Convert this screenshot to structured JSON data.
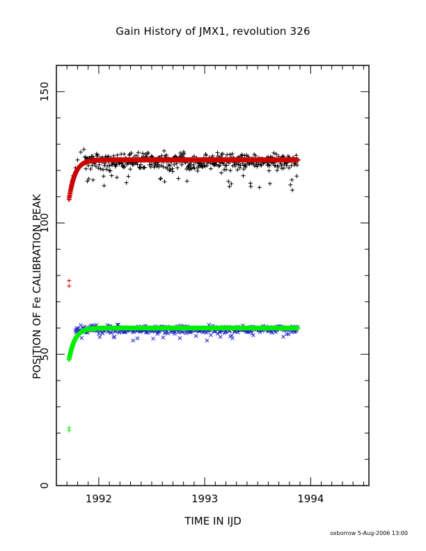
{
  "chart_data": {
    "type": "scatter",
    "title": "Gain History of JMX1, revolution 326",
    "xlabel": "TIME IN IJD",
    "ylabel": "POSITION OF Fe CALIBRATION PEAK",
    "xlim": [
      1991.6,
      1994.55
    ],
    "ylim": [
      0,
      160
    ],
    "xticks": [
      1992,
      1993,
      1994
    ],
    "yticks": [
      0,
      50,
      100,
      150
    ],
    "grid": false,
    "legend": "none",
    "x_start": 1991.72,
    "x_end": 1993.88,
    "series": [
      {
        "marker": "plus",
        "color": "#000000",
        "role": "high peak measurements",
        "level": 123.5,
        "spread": 3.5,
        "early": [
          [
            1991.72,
            110
          ],
          [
            1991.73,
            112
          ],
          [
            1991.74,
            114
          ],
          [
            1991.75,
            116
          ],
          [
            1991.76,
            118
          ],
          [
            1991.78,
            121
          ],
          [
            1991.8,
            124
          ],
          [
            1991.83,
            127
          ],
          [
            1991.86,
            128
          ]
        ]
      },
      {
        "marker": "plus",
        "color": "#cc0000",
        "role": "high peak fit",
        "level": 124,
        "rise_from": 109,
        "rise_rate": 18,
        "outliers": [
          [
            1991.72,
            78
          ],
          [
            1991.72,
            76
          ]
        ]
      },
      {
        "marker": "x",
        "color": "#2222cc",
        "role": "low peak measurements",
        "level": 59.5,
        "spread": 1.8
      },
      {
        "marker": "plus",
        "color": "#00ee00",
        "role": "low peak fit",
        "level": 60,
        "rise_from": 48,
        "rise_rate": 18,
        "outliers": [
          [
            1991.72,
            22
          ],
          [
            1991.72,
            21
          ]
        ]
      }
    ]
  },
  "footer": "oxborrow  5-Aug-2006 13:00"
}
